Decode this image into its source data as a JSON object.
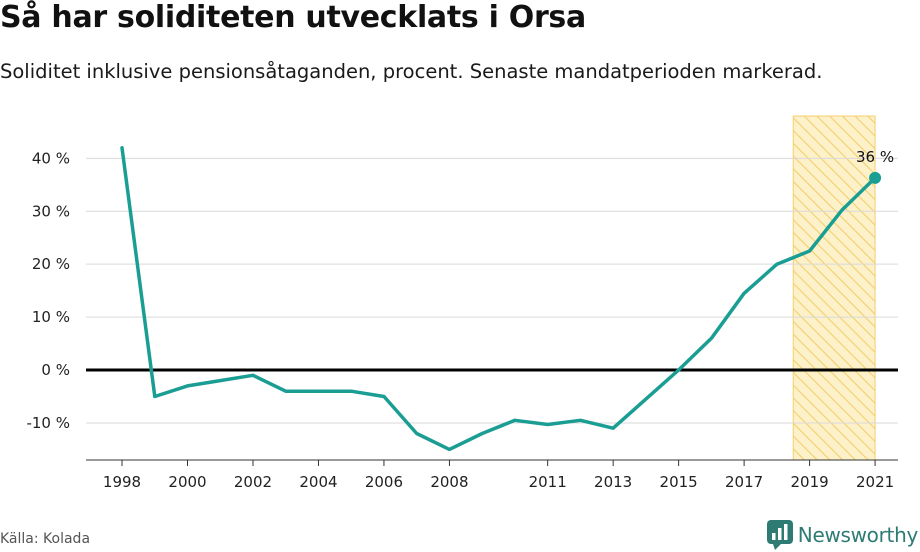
{
  "header": {
    "title": "Så har soliditeten utvecklats i Orsa",
    "subtitle": "Soliditet inklusive pensionsåtaganden, procent. Senaste mandatperioden markerad."
  },
  "footer": {
    "source": "Källa: Kolada",
    "brand": "Newsworthy"
  },
  "colors": {
    "line": "#1a9e94",
    "highlight_fill": "#fdf1c9",
    "highlight_stripe": "#f3cf6e",
    "zero_line": "#000000",
    "grid": "#d9d9d9",
    "brand": "#2e7b73"
  },
  "chart_data": {
    "type": "line",
    "x": [
      1998,
      1999,
      2000,
      2001,
      2002,
      2003,
      2004,
      2005,
      2006,
      2007,
      2008,
      2009,
      2010,
      2011,
      2012,
      2013,
      2014,
      2015,
      2016,
      2017,
      2018,
      2019,
      2020,
      2021
    ],
    "series": [
      {
        "values": [
          42,
          -5,
          -3,
          -2,
          -1,
          -4,
          -4,
          -4,
          -5,
          -12,
          -15,
          -12,
          -9.5,
          -10.3,
          -9.5,
          -11,
          -5.5,
          0,
          6,
          14.5,
          20,
          22.5,
          30.3,
          36.3
        ]
      }
    ],
    "x_ticks": [
      1998,
      2000,
      2002,
      2004,
      2006,
      2008,
      2011,
      2013,
      2015,
      2017,
      2019,
      2021
    ],
    "x_tick_labels": [
      "1998",
      "2000",
      "2002",
      "2004",
      "2006",
      "2008",
      "2011",
      "2013",
      "2015",
      "2017",
      "2019",
      "2021"
    ],
    "y_ticks": [
      -10,
      0,
      10,
      20,
      30,
      40
    ],
    "y_tick_labels": [
      "-10 %",
      "0 %",
      "10 %",
      "20 %",
      "30 %",
      "40 %"
    ],
    "xlim": [
      1996.9,
      2021.7
    ],
    "ylim": [
      -17,
      48
    ],
    "highlight_range": [
      2018.5,
      2021
    ],
    "end_label": "36 %",
    "grid": true,
    "title": "Så har soliditeten utvecklats i Orsa",
    "xlabel": "",
    "ylabel": ""
  }
}
